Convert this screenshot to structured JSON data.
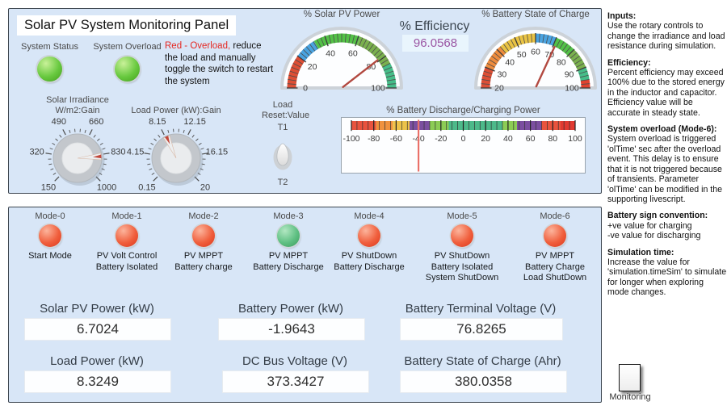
{
  "panel": {
    "title": "Solar PV System Monitoring Panel",
    "leds": [
      {
        "label": "System Status",
        "color": "green"
      },
      {
        "label": "System Overload",
        "color": "green"
      }
    ],
    "warning": {
      "red_text": "Red - Overload,",
      "black_text": "  reduce the load and manually toggle the switch to restart the system"
    }
  },
  "knobs": [
    {
      "title_line1": "Solar Irradiance",
      "title_line2": "W/m2:Gain",
      "min": 150,
      "max": 1000,
      "value": 845,
      "labels": [
        "150",
        "320",
        "490",
        "660",
        "830",
        "1000"
      ]
    },
    {
      "title_line1": "Load Power (kW):Gain",
      "title_line2": "",
      "min": 0.15,
      "max": 20,
      "value": 8.32,
      "labels": [
        "0.15",
        "4.15",
        "8.15",
        "12.15",
        "16.15",
        "20"
      ]
    }
  ],
  "gauges": {
    "pv_power": {
      "title": "% Solar PV Power",
      "min": 0,
      "max": 100,
      "value": 79,
      "minor_step": 2.5,
      "major_ticks": [
        0,
        20,
        40,
        60,
        80,
        100
      ],
      "segments": [
        {
          "from": 0,
          "to": 20,
          "color": "#dd4f35"
        },
        {
          "from": 20,
          "to": 33,
          "color": "#4aa3e0"
        },
        {
          "from": 33,
          "to": 61,
          "color": "#53c147"
        },
        {
          "from": 61,
          "to": 85,
          "color": "#7ab04e"
        },
        {
          "from": 85,
          "to": 100,
          "color": "#46bd89"
        }
      ]
    },
    "battery_soc": {
      "title": "% Battery State of Charge",
      "min": 20,
      "max": 100,
      "value": 71,
      "minor_step": 2,
      "major_ticks": [
        20,
        30,
        40,
        50,
        60,
        70,
        80,
        90,
        100
      ],
      "segments": [
        {
          "from": 20,
          "to": 30,
          "color": "#dd4f35"
        },
        {
          "from": 30,
          "to": 42,
          "color": "#ee8c3e"
        },
        {
          "from": 42,
          "to": 60,
          "color": "#e9c344"
        },
        {
          "from": 60,
          "to": 70,
          "color": "#4aa3e0"
        },
        {
          "from": 70,
          "to": 80,
          "color": "#53c147"
        },
        {
          "from": 80,
          "to": 90,
          "color": "#7ab04e"
        },
        {
          "from": 90,
          "to": 96,
          "color": "#46bd89"
        },
        {
          "from": 96,
          "to": 100,
          "color": "#e2422f"
        }
      ]
    },
    "battery_power": {
      "title": "% Battery Discharge/Charging Power",
      "min": -100,
      "max": 100,
      "value": -40,
      "minor_step": 5,
      "major_ticks": [
        -100,
        -80,
        -60,
        -40,
        -20,
        0,
        20,
        40,
        60,
        80,
        100
      ],
      "segments": [
        {
          "from": -100,
          "to": -78,
          "color": "#e8533e"
        },
        {
          "from": -78,
          "to": -63,
          "color": "#f0923e"
        },
        {
          "from": -63,
          "to": -48,
          "color": "#ecc24a"
        },
        {
          "from": -48,
          "to": -30,
          "color": "#7b4fa0"
        },
        {
          "from": -30,
          "to": -13,
          "color": "#8ccc55"
        },
        {
          "from": -13,
          "to": 35,
          "color": "#4db98a"
        },
        {
          "from": 35,
          "to": 48,
          "color": "#8ccc55"
        },
        {
          "from": 48,
          "to": 70,
          "color": "#7b4fa0"
        },
        {
          "from": 70,
          "to": 87,
          "color": "#e8533e"
        },
        {
          "from": 87,
          "to": 100,
          "color": "#e13a31"
        }
      ]
    }
  },
  "efficiency": {
    "label": "% Efficiency",
    "value": "96.0568"
  },
  "toggle": {
    "label_line1": "Load",
    "label_line2": "Reset:Value",
    "top_label": "T1",
    "bottom_label": "T2",
    "position": "up"
  },
  "modes": [
    {
      "label": "Mode-0",
      "color": "red",
      "desc": [
        "Start Mode",
        "",
        ""
      ]
    },
    {
      "label": "Mode-1",
      "color": "red",
      "desc": [
        "PV Volt Control",
        "Battery Isolated",
        ""
      ]
    },
    {
      "label": "Mode-2",
      "color": "red",
      "desc": [
        "PV MPPT",
        "Battery charge",
        ""
      ]
    },
    {
      "label": "Mode-3",
      "color": "green",
      "desc": [
        "PV MPPT",
        "Battery Discharge",
        ""
      ]
    },
    {
      "label": "Mode-4",
      "color": "red",
      "desc": [
        "PV ShutDown",
        "Battery Discharge",
        ""
      ]
    },
    {
      "label": "Mode-5",
      "color": "red",
      "desc": [
        "PV ShutDown",
        "Battery Isolated",
        "System ShutDown"
      ]
    },
    {
      "label": "Mode-6",
      "color": "red",
      "desc": [
        "PV MPPT",
        "Battery Charge",
        "Load ShutDown"
      ]
    }
  ],
  "displays": [
    {
      "label": "Solar PV Power (kW)",
      "value": "6.7024"
    },
    {
      "label": "Battery Power (kW)",
      "value": "-1.9643"
    },
    {
      "label": "Battery Terminal Voltage (V)",
      "value": "76.8265"
    },
    {
      "label": "Load Power (kW)",
      "value": "8.3249"
    },
    {
      "label": "DC Bus Voltage (V)",
      "value": "373.3427"
    },
    {
      "label": "Battery State of Charge (Ahr)",
      "value": "380.0358"
    }
  ],
  "sidebar": {
    "sections": [
      {
        "heading": "Inputs:",
        "body": "Use the rotary controls to change the irradiance and load resistance during simulation."
      },
      {
        "heading": "Efficiency:",
        "body": "Percent efficiency may exceed 100% due to the stored energy in the inductor and capacitor. Efficiency value will be accurate in steady state."
      },
      {
        "heading": "System overload (Mode-6):",
        "body": "System overload is triggered 'olTime' sec after the overload event. This delay is to ensure that it is not triggered because of transients.  Parameter 'olTime' can be modified in the supporting livescript."
      },
      {
        "heading": "Battery sign convention:",
        "body": "+ve value for charging\n-ve value for discharging"
      },
      {
        "heading": "Simulation time:",
        "body": "Increase the value for 'simulation.timeSim' to simulate for longer when exploring mode changes."
      }
    ],
    "monitoring_label": "Monitoring"
  },
  "colors": {
    "panel_background": "#d8e6f7",
    "warning_red": "#e52620",
    "efficiency_value": "#9a55a3",
    "needle_red": "#b24940",
    "lamp_red": "#f05f3d",
    "lamp_green": "#5fc083"
  }
}
